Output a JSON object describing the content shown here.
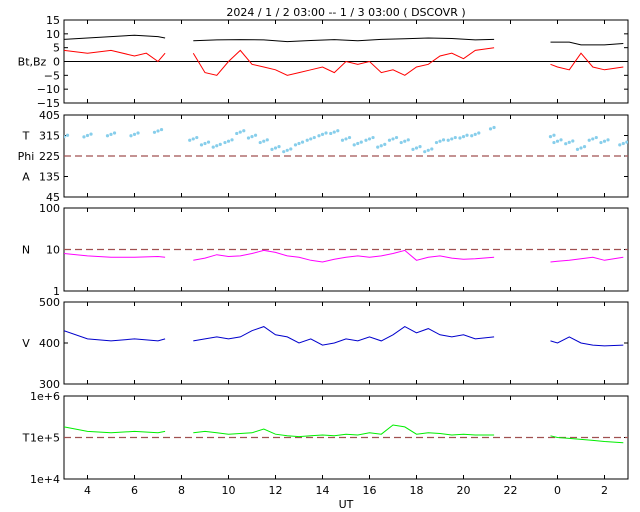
{
  "title": "2024 /  1 /  2   03:00 --  1 /  3   03:00 ( DSCOVR )",
  "colors": {
    "bt": "#000000",
    "bz": "#ff0000",
    "phi": "#87ceeb",
    "phi_gap": "#c0c0c0",
    "theta": "#ff00ff",
    "n": "#ff00ff",
    "v": "#0000cc",
    "t": "#00ee00",
    "ref_line": "#a05050"
  },
  "chart_data": {
    "type": "line",
    "x_range_hours": [
      3,
      27
    ],
    "x_ticks": [
      "4",
      "6",
      "8",
      "10",
      "12",
      "14",
      "16",
      "18",
      "20",
      "22",
      "0",
      "2"
    ],
    "x_tick_positions_hours": [
      4,
      6,
      8,
      10,
      12,
      14,
      16,
      18,
      20,
      22,
      24,
      26
    ],
    "xlabel": "UT",
    "gaps_hours": [
      [
        7.3,
        8.3
      ],
      [
        21.3,
        23.6
      ]
    ],
    "panels": [
      {
        "id": "mag",
        "ylabel": "Bt,Bz",
        "ylim": [
          -15,
          15
        ],
        "yticks": [
          15,
          10,
          5,
          0,
          -5,
          -10,
          -15
        ],
        "ytick_labels": [
          "15",
          "10",
          "5",
          "0",
          "−5",
          "−10",
          "−15"
        ],
        "zero_line": 0,
        "series": [
          {
            "name": "Bt",
            "color": "#000000",
            "x": [
              3,
              4,
              5,
              6,
              7,
              7.3,
              8.5,
              9.5,
              10.5,
              11.5,
              12.5,
              13.5,
              14.5,
              15.5,
              16.5,
              17.5,
              18.5,
              19.5,
              20.5,
              21.3,
              23.7,
              24.5,
              25,
              26,
              26.8
            ],
            "y": [
              8,
              8.5,
              9,
              9.5,
              9,
              8.5,
              7.5,
              7.8,
              7.9,
              7.8,
              7.2,
              7.6,
              7.9,
              7.5,
              8,
              8.2,
              8.5,
              8.3,
              7.8,
              8,
              7,
              7,
              6,
              6,
              6.5
            ]
          },
          {
            "name": "Bz",
            "color": "#ff0000",
            "x": [
              3,
              4,
              5,
              6,
              6.5,
              7,
              7.3,
              8.5,
              9,
              9.5,
              10,
              10.5,
              11,
              11.5,
              12,
              12.5,
              13,
              13.5,
              14,
              14.5,
              15,
              15.5,
              16,
              16.5,
              17,
              17.5,
              18,
              18.5,
              19,
              19.5,
              20,
              20.5,
              21.3,
              23.7,
              24,
              24.5,
              25,
              25.5,
              26,
              26.8
            ],
            "y": [
              4,
              3,
              4,
              2,
              3,
              0,
              3,
              3,
              -4,
              -5,
              0,
              4,
              -1,
              -2,
              -3,
              -5,
              -4,
              -3,
              -2,
              -4,
              0,
              -1,
              0,
              -4,
              -3,
              -5,
              -2,
              -1,
              2,
              3,
              1,
              4,
              5,
              -1,
              -2,
              -3,
              3,
              -2,
              -3,
              -2
            ]
          }
        ]
      },
      {
        "id": "ang",
        "ylabel": "T",
        "ylabel2": "Phi",
        "ylabel3": "A",
        "ylim": [
          45,
          405
        ],
        "yticks": [
          405,
          315,
          225,
          135,
          45
        ],
        "ytick_labels": [
          "405",
          "315",
          "225",
          "135",
          "45"
        ],
        "ref_line": 225,
        "series": [
          {
            "name": "Phi",
            "color": "#87ceeb",
            "x": [
              3,
              4,
              5,
              6,
              7,
              8.5,
              9,
              9.5,
              10,
              10.5,
              11,
              11.5,
              12,
              12.5,
              13,
              13.5,
              14,
              14.5,
              15,
              15.5,
              16,
              16.5,
              17,
              17.5,
              18,
              18.5,
              19,
              19.5,
              20,
              20.5,
              21.3,
              23.7,
              24,
              24.5,
              25,
              25.5,
              26,
              26.8
            ],
            "y": [
              310,
              315,
              320,
              320,
              335,
              300,
              280,
              270,
              290,
              330,
              310,
              290,
              260,
              250,
              280,
              300,
              320,
              330,
              300,
              280,
              300,
              270,
              300,
              290,
              260,
              250,
              290,
              300,
              310,
              320,
              350,
              310,
              290,
              285,
              260,
              300,
              290,
              280
            ]
          }
        ]
      },
      {
        "id": "n",
        "ylabel": "N",
        "log": true,
        "ylim": [
          1,
          100
        ],
        "yticks": [
          100,
          10,
          1
        ],
        "ytick_labels": [
          "100",
          "10",
          "1"
        ],
        "ref_line": 10,
        "series": [
          {
            "name": "N",
            "color": "#ff00ff",
            "x": [
              3,
              4,
              5,
              6,
              7,
              7.3,
              8.5,
              9,
              9.5,
              10,
              10.5,
              11,
              11.5,
              12,
              12.5,
              13,
              13.5,
              14,
              14.5,
              15,
              15.5,
              16,
              16.5,
              17,
              17.5,
              18,
              18.5,
              19,
              19.5,
              20,
              20.5,
              21.3,
              23.7,
              24,
              24.5,
              25,
              25.5,
              26,
              26.8
            ],
            "y": [
              8,
              7,
              6.5,
              6.5,
              6.8,
              6.5,
              5.5,
              6.2,
              7.5,
              6.8,
              7,
              8,
              9.5,
              8.5,
              7,
              6.5,
              5.5,
              5,
              5.8,
              6.5,
              7,
              6.5,
              7,
              8,
              9.5,
              5.5,
              6.5,
              7,
              6.2,
              5.8,
              6,
              6.5,
              5,
              5.2,
              5.5,
              6,
              6.5,
              5.5,
              6.5
            ]
          }
        ]
      },
      {
        "id": "v",
        "ylabel": "V",
        "ylim": [
          300,
          500
        ],
        "yticks": [
          500,
          400,
          300
        ],
        "ytick_labels": [
          "500",
          "400",
          "300"
        ],
        "series": [
          {
            "name": "V",
            "color": "#0000cc",
            "x": [
              3,
              4,
              5,
              6,
              7,
              7.3,
              8.5,
              9,
              9.5,
              10,
              10.5,
              11,
              11.5,
              12,
              12.5,
              13,
              13.5,
              14,
              14.5,
              15,
              15.5,
              16,
              16.5,
              17,
              17.5,
              18,
              18.5,
              19,
              19.5,
              20,
              20.5,
              21.3,
              23.7,
              24,
              24.5,
              25,
              25.5,
              26,
              26.8
            ],
            "y": [
              430,
              410,
              405,
              410,
              405,
              410,
              405,
              410,
              415,
              410,
              415,
              430,
              440,
              420,
              415,
              400,
              410,
              395,
              400,
              410,
              405,
              415,
              405,
              420,
              440,
              425,
              435,
              420,
              415,
              420,
              410,
              415,
              405,
              400,
              415,
              400,
              395,
              393,
              395
            ]
          }
        ]
      },
      {
        "id": "t",
        "ylabel": "T",
        "log": true,
        "ylim": [
          10000,
          1000000
        ],
        "yticks": [
          1000000,
          100000,
          10000
        ],
        "ytick_labels": [
          "1e+6",
          "1e+5",
          "1e+4"
        ],
        "ref_line": 100000,
        "series": [
          {
            "name": "T",
            "color": "#00ee00",
            "x": [
              3,
              4,
              5,
              6,
              7,
              7.3,
              8.5,
              9,
              9.5,
              10,
              10.5,
              11,
              11.5,
              12,
              12.5,
              13,
              13.5,
              14,
              14.5,
              15,
              15.5,
              16,
              16.5,
              17,
              17.5,
              18,
              18.5,
              19,
              19.5,
              20,
              20.5,
              21.3,
              23.7,
              24,
              24.5,
              25,
              25.5,
              26,
              26.8
            ],
            "y": [
              180000,
              140000,
              130000,
              140000,
              130000,
              140000,
              130000,
              140000,
              130000,
              120000,
              125000,
              130000,
              160000,
              120000,
              110000,
              105000,
              110000,
              115000,
              110000,
              120000,
              115000,
              130000,
              120000,
              200000,
              180000,
              120000,
              130000,
              125000,
              115000,
              120000,
              115000,
              115000,
              110000,
              100000,
              95000,
              90000,
              85000,
              80000,
              75000
            ]
          }
        ]
      }
    ]
  }
}
